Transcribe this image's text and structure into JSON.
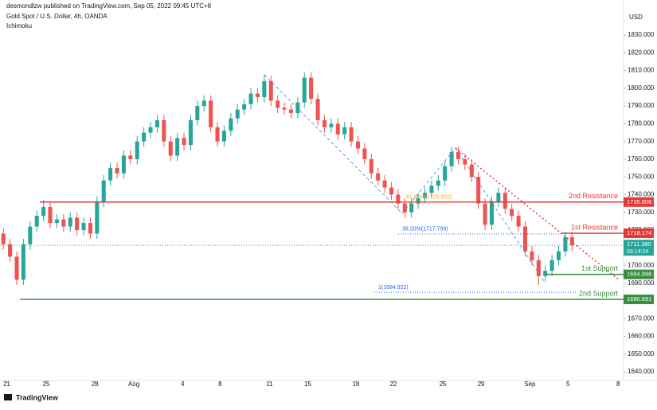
{
  "header": {
    "publisher": "desmondlzw published on TradingView.com, Sep 05, 2022 09:45 UTC+8",
    "symbol": "Gold Spot / U.S. Dollar, 4h, OANDA",
    "indicator": "Ichimoku",
    "currency": "USD",
    "brand": "TradingView"
  },
  "chart_data": {
    "type": "candlestick",
    "up_color": "#26a69a",
    "down_color": "#ef5350",
    "open": [
      1718,
      1712,
      1705,
      1692,
      1712,
      1722,
      1728,
      1733,
      1724,
      1726,
      1722,
      1727,
      1720,
      1724,
      1718,
      1736,
      1748,
      1755,
      1752,
      1762,
      1760,
      1770,
      1775,
      1778,
      1782,
      1770,
      1762,
      1772,
      1768,
      1782,
      1790,
      1793,
      1778,
      1770,
      1776,
      1783,
      1788,
      1791,
      1797,
      1795,
      1804,
      1793,
      1789,
      1788,
      1786,
      1792,
      1806,
      1794,
      1782,
      1778,
      1780,
      1774,
      1778,
      1770,
      1766,
      1760,
      1752,
      1748,
      1744,
      1740,
      1735,
      1730,
      1735,
      1738,
      1741,
      1745,
      1748,
      1756,
      1764,
      1760,
      1757,
      1750,
      1735,
      1723,
      1736,
      1741,
      1732,
      1728,
      1722,
      1708,
      1703,
      1694,
      1697,
      1703,
      1708,
      1716
    ],
    "high": [
      1721,
      1715,
      1708,
      1715,
      1725,
      1731,
      1737,
      1736,
      1729,
      1729,
      1730,
      1730,
      1727,
      1727,
      1739,
      1751,
      1758,
      1758,
      1765,
      1765,
      1773,
      1778,
      1781,
      1785,
      1785,
      1773,
      1775,
      1775,
      1785,
      1793,
      1796,
      1796,
      1781,
      1779,
      1786,
      1791,
      1794,
      1800,
      1800,
      1808,
      1807,
      1796,
      1792,
      1791,
      1795,
      1809,
      1809,
      1797,
      1785,
      1783,
      1783,
      1781,
      1781,
      1773,
      1769,
      1763,
      1755,
      1751,
      1747,
      1743,
      1738,
      1738,
      1741,
      1744,
      1748,
      1751,
      1759,
      1767,
      1767,
      1763,
      1760,
      1753,
      1738,
      1739,
      1744,
      1744,
      1735,
      1731,
      1725,
      1711,
      1706,
      1700,
      1706,
      1711,
      1719,
      1719
    ],
    "low": [
      1709,
      1702,
      1689,
      1689,
      1709,
      1719,
      1725,
      1721,
      1721,
      1719,
      1719,
      1717,
      1717,
      1715,
      1715,
      1733,
      1745,
      1749,
      1749,
      1757,
      1757,
      1767,
      1772,
      1775,
      1767,
      1759,
      1759,
      1765,
      1765,
      1779,
      1787,
      1775,
      1767,
      1767,
      1773,
      1780,
      1785,
      1788,
      1792,
      1792,
      1790,
      1786,
      1785,
      1783,
      1783,
      1789,
      1791,
      1779,
      1775,
      1775,
      1771,
      1771,
      1767,
      1763,
      1757,
      1749,
      1745,
      1741,
      1737,
      1732,
      1727,
      1727,
      1732,
      1735,
      1738,
      1742,
      1745,
      1753,
      1757,
      1754,
      1747,
      1732,
      1720,
      1720,
      1733,
      1729,
      1725,
      1719,
      1705,
      1700,
      1689,
      1691,
      1694,
      1700,
      1705,
      1708
    ],
    "close": [
      1712,
      1705,
      1692,
      1712,
      1722,
      1728,
      1733,
      1724,
      1726,
      1722,
      1727,
      1720,
      1724,
      1718,
      1736,
      1748,
      1755,
      1752,
      1762,
      1760,
      1770,
      1775,
      1778,
      1782,
      1770,
      1762,
      1772,
      1768,
      1782,
      1790,
      1793,
      1778,
      1770,
      1776,
      1783,
      1788,
      1791,
      1797,
      1795,
      1804,
      1793,
      1789,
      1788,
      1786,
      1792,
      1806,
      1794,
      1782,
      1778,
      1780,
      1774,
      1778,
      1770,
      1766,
      1760,
      1752,
      1748,
      1744,
      1740,
      1735,
      1730,
      1735,
      1738,
      1741,
      1745,
      1748,
      1756,
      1764,
      1760,
      1757,
      1750,
      1735,
      1723,
      1736,
      1741,
      1732,
      1728,
      1722,
      1708,
      1703,
      1694,
      1697,
      1703,
      1708,
      1716,
      1711.38
    ],
    "xlim": [
      -0.5,
      92.7
    ],
    "xticks": [
      {
        "value": 0.5,
        "label": "21"
      },
      {
        "value": 6.4,
        "label": "25"
      },
      {
        "value": 13.7,
        "label": "28"
      },
      {
        "value": 19.5,
        "label": "Aug"
      },
      {
        "value": 26.8,
        "label": "4"
      },
      {
        "value": 32.4,
        "label": "8"
      },
      {
        "value": 39.8,
        "label": "11"
      },
      {
        "value": 45.5,
        "label": "15"
      },
      {
        "value": 52.7,
        "label": "18"
      },
      {
        "value": 58.3,
        "label": "22"
      },
      {
        "value": 65.7,
        "label": "25"
      },
      {
        "value": 71.4,
        "label": "29"
      },
      {
        "value": 78.7,
        "label": "Sep"
      },
      {
        "value": 84.4,
        "label": "5"
      },
      {
        "value": 91.9,
        "label": "8"
      }
    ],
    "ylim": [
      1635.1,
      1849.8
    ],
    "yticks": [
      {
        "value": 1640,
        "label": "1640.000"
      },
      {
        "value": 1650,
        "label": "1650.000"
      },
      {
        "value": 1660,
        "label": "1660.000"
      },
      {
        "value": 1670,
        "label": "1670.000"
      },
      {
        "value": 1680,
        "label": "1680.000"
      },
      {
        "value": 1690,
        "label": "1690.000"
      },
      {
        "value": 1700,
        "label": "1700.000"
      },
      {
        "value": 1710,
        "label": "1710.000"
      },
      {
        "value": 1720,
        "label": "1720.000"
      },
      {
        "value": 1730,
        "label": "1730.000"
      },
      {
        "value": 1740,
        "label": "1740.000"
      },
      {
        "value": 1750,
        "label": "1750.000"
      },
      {
        "value": 1760,
        "label": "1760.000"
      },
      {
        "value": 1770,
        "label": "1770.000"
      },
      {
        "value": 1780,
        "label": "1780.000"
      },
      {
        "value": 1790,
        "label": "1790.000"
      },
      {
        "value": 1800,
        "label": "1800.000"
      },
      {
        "value": 1810,
        "label": "1810.000"
      },
      {
        "value": 1820,
        "label": "1820.000"
      },
      {
        "value": 1830,
        "label": "1830.000"
      }
    ],
    "levels": [
      {
        "name": "2nd Resistance",
        "value": 1735.808,
        "color": "#e53935"
      },
      {
        "name": "1st Resistance",
        "value": 1718.174,
        "color": "#e53935"
      },
      {
        "name": "1st Support",
        "value": 1694.998,
        "color": "#388e3c"
      },
      {
        "name": "2nd Support",
        "value": 1680.891,
        "color": "#388e3c"
      }
    ],
    "fib_labels": [
      {
        "label": "61.80%(1735.932)",
        "value": 1735.932,
        "color": "#f9a825"
      },
      {
        "label": "38.20%(1717.799)",
        "value": 1717.799,
        "color": "#2962ff"
      },
      {
        "label": "1(1684.922)",
        "value": 1684.922,
        "color": "#2962ff"
      }
    ],
    "last_price": {
      "value": 1711.38,
      "label": "1711.380",
      "countdown": "03:14:24",
      "color": "#26a69a"
    }
  }
}
